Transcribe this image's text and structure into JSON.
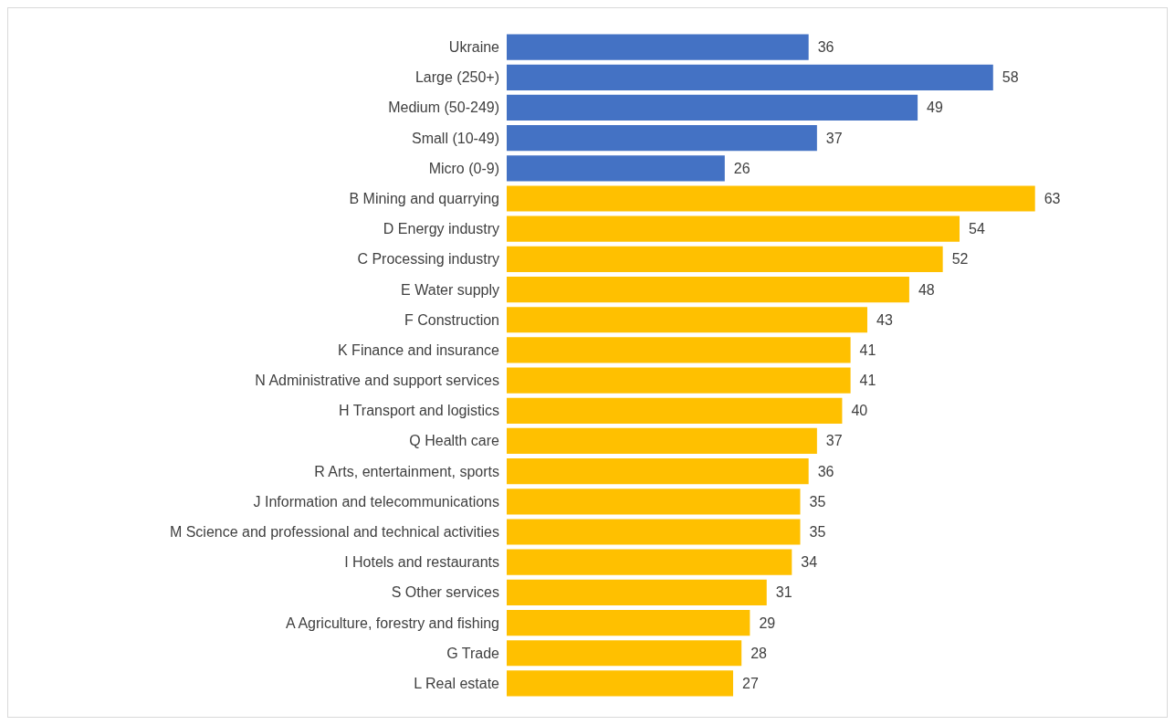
{
  "chart_data": {
    "type": "bar",
    "orientation": "horizontal",
    "data_labels": true,
    "categories": [
      "Ukraine",
      "Large (250+)",
      "Medium (50-249)",
      "Small (10-49)",
      "Micro (0-9)",
      "B Mining and quarrying",
      "D Energy industry",
      "C Processing industry",
      "E Water supply",
      "F Construction",
      "K Finance and insurance",
      "N Administrative and support services",
      "H Transport and logistics",
      "Q Health care",
      "R Arts, entertainment, sports",
      "J Information and telecommunications",
      "M Science and professional and technical activities",
      "I Hotels and restaurants",
      "S Other services",
      "A Agriculture, forestry and fishing",
      "G Trade",
      "L Real estate"
    ],
    "values": [
      36,
      58,
      49,
      37,
      26,
      63,
      54,
      52,
      48,
      43,
      41,
      41,
      40,
      37,
      36,
      35,
      35,
      34,
      31,
      29,
      28,
      27
    ],
    "colors": [
      "#4472c4",
      "#4472c4",
      "#4472c4",
      "#4472c4",
      "#4472c4",
      "#ffc000",
      "#ffc000",
      "#ffc000",
      "#ffc000",
      "#ffc000",
      "#ffc000",
      "#ffc000",
      "#ffc000",
      "#ffc000",
      "#ffc000",
      "#ffc000",
      "#ffc000",
      "#ffc000",
      "#ffc000",
      "#ffc000",
      "#ffc000",
      "#ffc000"
    ]
  }
}
